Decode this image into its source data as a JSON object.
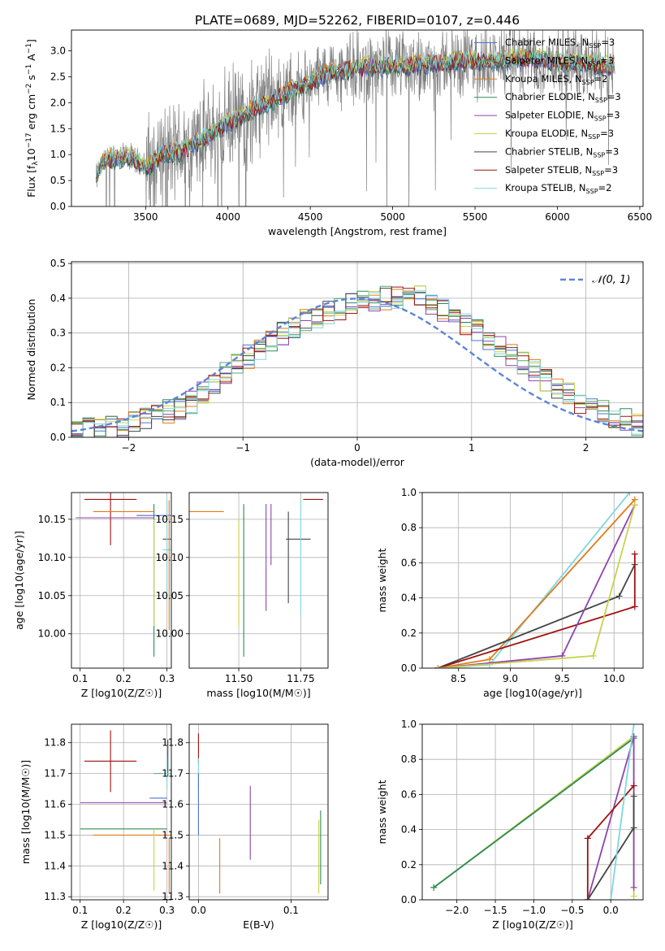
{
  "figure_title": "PLATE=0689, MJD=52262, FIBERID=0107, z=0.446",
  "colors": {
    "chabrier_miles": "#4c72d0",
    "salpeter_miles": "#55a868",
    "kroupa_miles": "#e07b1a",
    "chabrier_elodie": "#2e8b57",
    "salpeter_elodie": "#8e44ad",
    "kroupa_elodie": "#c7d34a",
    "chabrier_stelib": "#444444",
    "salpeter_stelib": "#a01010",
    "kroupa_stelib": "#7fd6e0",
    "data": "#808080",
    "gaussian": "#5b86d6",
    "grid": "#b0b0b0"
  },
  "chart_data": [
    {
      "id": "spectrum",
      "type": "line",
      "title": "PLATE=0689, MJD=52262, FIBERID=0107, z=0.446",
      "xlabel": "wavelength [Angstrom, rest frame]",
      "ylabel": "Flux [f_λ 10^-17 erg cm^-2 s^-1 A^-1]",
      "xlim": [
        3050,
        6520
      ],
      "ylim": [
        0,
        3.4
      ],
      "xticks": [
        "3500",
        "4000",
        "4500",
        "5000",
        "5500",
        "6000",
        "6500"
      ],
      "yticks": [
        "0.0",
        "0.5",
        "1.0",
        "1.5",
        "2.0",
        "2.5",
        "3.0"
      ],
      "grid": false,
      "legend_position": "top-right",
      "data_range": [
        3200,
        6350
      ],
      "model_anchors": {
        "x": [
          3200,
          3250,
          3400,
          3500,
          3600,
          3700,
          3800,
          3900,
          4000,
          4200,
          4400,
          4600,
          4800,
          5000,
          5200,
          5400,
          5600,
          5800,
          6000,
          6200,
          6350
        ],
        "y": [
          0.55,
          0.9,
          0.95,
          0.75,
          1.0,
          1.05,
          1.2,
          1.4,
          1.6,
          1.95,
          2.25,
          2.55,
          2.7,
          2.7,
          2.75,
          2.8,
          2.8,
          2.85,
          2.8,
          2.75,
          2.7
        ]
      },
      "series": [
        {
          "name": "Chabrier MILES",
          "nssp": "3"
        },
        {
          "name": "Salpeter MILES",
          "nssp": "3"
        },
        {
          "name": "Kroupa MILES",
          "nssp": "2"
        },
        {
          "name": "Chabrier ELODIE",
          "nssp": "3"
        },
        {
          "name": "Salpeter ELODIE",
          "nssp": "3"
        },
        {
          "name": "Kroupa ELODIE",
          "nssp": "3"
        },
        {
          "name": "Chabrier STELIB",
          "nssp": "3"
        },
        {
          "name": "Salpeter STELIB",
          "nssp": "3"
        },
        {
          "name": "Kroupa STELIB",
          "nssp": "2"
        }
      ]
    },
    {
      "id": "residuals",
      "type": "histogram",
      "xlabel": "(data-model)/error",
      "ylabel": "Normed distribution",
      "xlim": [
        -2.5,
        2.5
      ],
      "ylim": [
        0,
        0.505
      ],
      "xticks": [
        "−2",
        "−1",
        "0",
        "1",
        "2"
      ],
      "yticks": [
        "0.0",
        "0.1",
        "0.2",
        "0.3",
        "0.4",
        "0.5"
      ],
      "grid": true,
      "legend": "𝒩(0, 1)",
      "bin_width": 0.1,
      "histogram_shape": {
        "x": [
          -2.5,
          -2.0,
          -1.5,
          -1.0,
          -0.5,
          0.0,
          0.5,
          1.0,
          1.5,
          2.0,
          2.5
        ],
        "y": [
          0.015,
          0.035,
          0.09,
          0.22,
          0.33,
          0.39,
          0.41,
          0.32,
          0.2,
          0.09,
          0.03
        ]
      }
    },
    {
      "id": "age_vs_Z",
      "type": "errorbar",
      "xlabel": "Z [log10(Z/Z☉)]",
      "ylabel": "age [log10(age/yr)]",
      "xlim": [
        0.08,
        0.31
      ],
      "ylim": [
        9.955,
        10.185
      ],
      "xticks": [
        "0.1",
        "0.2",
        "0.3"
      ],
      "yticks": [
        "10.00",
        "10.05",
        "10.10",
        "10.15"
      ],
      "grid": true,
      "points": [
        {
          "series": "Salpeter STELIB",
          "x": 0.17,
          "y": 10.176,
          "xerr": 0.06,
          "yerr": 0.06
        },
        {
          "series": "Kroupa MILES",
          "x": 0.2,
          "y": 10.16,
          "xerr": 0.07,
          "yerr": 0.0
        },
        {
          "series": "Salpeter ELODIE",
          "x": 0.18,
          "y": 10.152,
          "xerr": 0.09,
          "yerr": 0.0
        },
        {
          "series": "Chabrier ELODIE",
          "x": 0.27,
          "y": 10.07,
          "xerr": 0.0,
          "yerr": 0.1
        },
        {
          "series": "Kroupa ELODIE",
          "x": 0.27,
          "y": 10.08,
          "xerr": 0.0,
          "yerr": 0.07
        },
        {
          "series": "Chabrier MILES",
          "x": 0.29,
          "y": 10.155,
          "xerr": 0.06,
          "yerr": 0.0
        },
        {
          "series": "Chabrier STELIB",
          "x": 0.3,
          "y": 10.124,
          "xerr": 0.01,
          "yerr": 0.0
        },
        {
          "series": "Kroupa STELIB",
          "x": 0.3,
          "y": 10.11,
          "xerr": 0.01,
          "yerr": 0.065
        },
        {
          "series": "Kroupa MILES",
          "x": 0.305,
          "y": 10.09,
          "xerr": 0.0,
          "yerr": 0.085
        }
      ]
    },
    {
      "id": "age_vs_mass",
      "type": "errorbar",
      "xlabel": "mass [log10(M/M☉)]",
      "ylabel": "",
      "xlim": [
        11.3,
        11.86
      ],
      "ylim": [
        9.955,
        10.185
      ],
      "xticks": [
        "11.50",
        "11.75"
      ],
      "yticks": [
        "10.00",
        "10.05",
        "10.10",
        "10.15"
      ],
      "grid": true,
      "points": [
        {
          "series": "Kroupa MILES",
          "x": 11.37,
          "y": 10.16,
          "xerr": 0.07,
          "yerr": 0.0
        },
        {
          "series": "Kroupa ELODIE",
          "x": 11.5,
          "y": 10.08,
          "xerr": 0.0,
          "yerr": 0.07
        },
        {
          "series": "Chabrier ELODIE",
          "x": 11.52,
          "y": 10.07,
          "xerr": 0.0,
          "yerr": 0.1
        },
        {
          "series": "Salpeter ELODIE",
          "x": 11.61,
          "y": 10.1,
          "xerr": 0.0,
          "yerr": 0.07
        },
        {
          "series": "Salpeter ELODIE",
          "x": 11.63,
          "y": 10.13,
          "xerr": 0.0,
          "yerr": 0.04
        },
        {
          "series": "Chabrier STELIB",
          "x": 11.74,
          "y": 10.124,
          "xerr": 0.05,
          "yerr": 0.0
        },
        {
          "series": "Chabrier STELIB",
          "x": 11.7,
          "y": 10.1,
          "xerr": 0.0,
          "yerr": 0.06
        },
        {
          "series": "Kroupa STELIB",
          "x": 11.75,
          "y": 10.1,
          "xerr": 0.0,
          "yerr": 0.075
        },
        {
          "series": "Salpeter STELIB",
          "x": 11.8,
          "y": 10.176,
          "xerr": 0.04,
          "yerr": 0.0
        }
      ]
    },
    {
      "id": "massweight_vs_age",
      "type": "line",
      "xlabel": "age [log10(age/yr)]",
      "ylabel": "mass weight",
      "xlim": [
        8.15,
        10.28
      ],
      "ylim": [
        0,
        1.0
      ],
      "xticks": [
        "8.5",
        "9.0",
        "9.5",
        "10.0"
      ],
      "yticks": [
        "0.0",
        "0.2",
        "0.4",
        "0.6",
        "0.8",
        "1.0"
      ],
      "grid": true,
      "series": [
        {
          "series": "Kroupa STELIB",
          "x": [
            8.3,
            8.8,
            10.15
          ],
          "y": [
            0.0,
            0.02,
            1.0
          ]
        },
        {
          "series": "Kroupa MILES",
          "x": [
            8.3,
            8.8,
            10.2
          ],
          "y": [
            0.0,
            0.05,
            0.96
          ]
        },
        {
          "series": "Chabrier STELIB",
          "x": [
            8.3,
            10.05,
            10.2
          ],
          "y": [
            0.0,
            0.41,
            0.59
          ]
        },
        {
          "series": "Salpeter STELIB",
          "x": [
            8.3,
            10.2,
            10.2
          ],
          "y": [
            0.0,
            0.35,
            0.65
          ]
        },
        {
          "series": "Salpeter ELODIE",
          "x": [
            8.3,
            9.5,
            10.2
          ],
          "y": [
            0.0,
            0.07,
            0.93
          ]
        },
        {
          "series": "Kroupa ELODIE",
          "x": [
            8.3,
            9.8,
            10.2
          ],
          "y": [
            0.0,
            0.07,
            0.93
          ]
        }
      ]
    },
    {
      "id": "mass_vs_Z",
      "type": "errorbar",
      "xlabel": "Z [log10(Z/Z☉)]",
      "ylabel": "mass [log10(M/M☉)]",
      "xlim": [
        0.08,
        0.31
      ],
      "ylim": [
        11.29,
        11.86
      ],
      "xticks": [
        "0.1",
        "0.2",
        "0.3"
      ],
      "yticks": [
        "11.3",
        "11.4",
        "11.5",
        "11.6",
        "11.7",
        "11.8"
      ],
      "grid": true,
      "points": [
        {
          "series": "Salpeter STELIB",
          "x": 0.17,
          "y": 11.74,
          "xerr": 0.06,
          "yerr": 0.1
        },
        {
          "series": "Salpeter ELODIE",
          "x": 0.2,
          "y": 11.605,
          "xerr": 0.1,
          "yerr": 0.0
        },
        {
          "series": "Chabrier ELODIE",
          "x": 0.2,
          "y": 11.52,
          "xerr": 0.1,
          "yerr": 0.0
        },
        {
          "series": "Kroupa MILES",
          "x": 0.22,
          "y": 11.5,
          "xerr": 0.09,
          "yerr": 0.0
        },
        {
          "series": "Kroupa ELODIE",
          "x": 0.27,
          "y": 11.42,
          "xerr": 0.0,
          "yerr": 0.1
        },
        {
          "series": "Salpeter MILES",
          "x": 0.29,
          "y": 11.7,
          "xerr": 0.02,
          "yerr": 0.0
        },
        {
          "series": "Chabrier MILES",
          "x": 0.28,
          "y": 11.62,
          "xerr": 0.02,
          "yerr": 0.0
        },
        {
          "series": "Chabrier STELIB",
          "x": 0.302,
          "y": 11.75,
          "xerr": 0.0,
          "yerr": 0.06
        },
        {
          "series": "Kroupa STELIB",
          "x": 0.3,
          "y": 11.7,
          "xerr": 0.01,
          "yerr": 0.05
        },
        {
          "series": "Kroupa MILES",
          "x": 0.305,
          "y": 11.4,
          "xerr": 0.0,
          "yerr": 0.09
        }
      ]
    },
    {
      "id": "mass_vs_ebv",
      "type": "errorbar",
      "xlabel": "E(B-V)",
      "ylabel": "",
      "xlim": [
        -0.01,
        0.14
      ],
      "ylim": [
        11.29,
        11.86
      ],
      "xticks": [
        "0.0",
        "0.1"
      ],
      "yticks": [
        "11.3",
        "11.4",
        "11.5",
        "11.6",
        "11.7",
        "11.8"
      ],
      "grid": true,
      "points": [
        {
          "series": "Salpeter STELIB",
          "x": 0.0,
          "y": 11.78,
          "xerr": 0.0,
          "yerr": 0.05
        },
        {
          "series": "Kroupa STELIB",
          "x": 0.0,
          "y": 11.7,
          "xerr": 0.0,
          "yerr": 0.05
        },
        {
          "series": "Chabrier MILES",
          "x": 0.0,
          "y": 11.6,
          "xerr": 0.0,
          "yerr": 0.1
        },
        {
          "series": "Kroupa MILES",
          "x": 0.023,
          "y": 11.4,
          "xerr": 0.0,
          "yerr": 0.09
        },
        {
          "series": "Salpeter ELODIE",
          "x": 0.056,
          "y": 11.54,
          "xerr": 0.0,
          "yerr": 0.12
        },
        {
          "series": "Kroupa ELODIE",
          "x": 0.13,
          "y": 11.43,
          "xerr": 0.0,
          "yerr": 0.12
        },
        {
          "series": "Chabrier ELODIE",
          "x": 0.132,
          "y": 11.46,
          "xerr": 0.0,
          "yerr": 0.12
        }
      ]
    },
    {
      "id": "massweight_vs_Z",
      "type": "line",
      "xlabel": "Z [log10(Z/Z☉)]",
      "ylabel": "mass weight",
      "xlim": [
        -2.45,
        0.42
      ],
      "ylim": [
        0,
        1.0
      ],
      "xticks": [
        "−2.0",
        "−1.5",
        "−1.0",
        "−0.5",
        "0.0"
      ],
      "yticks": [
        "0.0",
        "0.2",
        "0.4",
        "0.6",
        "0.8",
        "1.0"
      ],
      "grid": true,
      "series": [
        {
          "series": "Kroupa ELODIE",
          "x": [
            -2.3,
            0.3,
            0.3
          ],
          "y": [
            0.07,
            0.93,
            0.02
          ]
        },
        {
          "series": "Chabrier ELODIE",
          "x": [
            -2.3,
            0.3
          ],
          "y": [
            0.07,
            0.92
          ]
        },
        {
          "series": "Salpeter ELODIE",
          "x": [
            -0.3,
            0.3,
            0.3
          ],
          "y": [
            0.0,
            0.93,
            0.07
          ]
        },
        {
          "series": "Salpeter STELIB",
          "x": [
            -0.3,
            -0.3,
            0.3
          ],
          "y": [
            0.0,
            0.35,
            0.65
          ]
        },
        {
          "series": "Chabrier STELIB",
          "x": [
            -0.3,
            0.3,
            0.3
          ],
          "y": [
            0.0,
            0.41,
            0.59
          ]
        },
        {
          "series": "Kroupa STELIB",
          "x": [
            0.0,
            0.3
          ],
          "y": [
            0.0,
            1.0
          ]
        }
      ]
    }
  ]
}
